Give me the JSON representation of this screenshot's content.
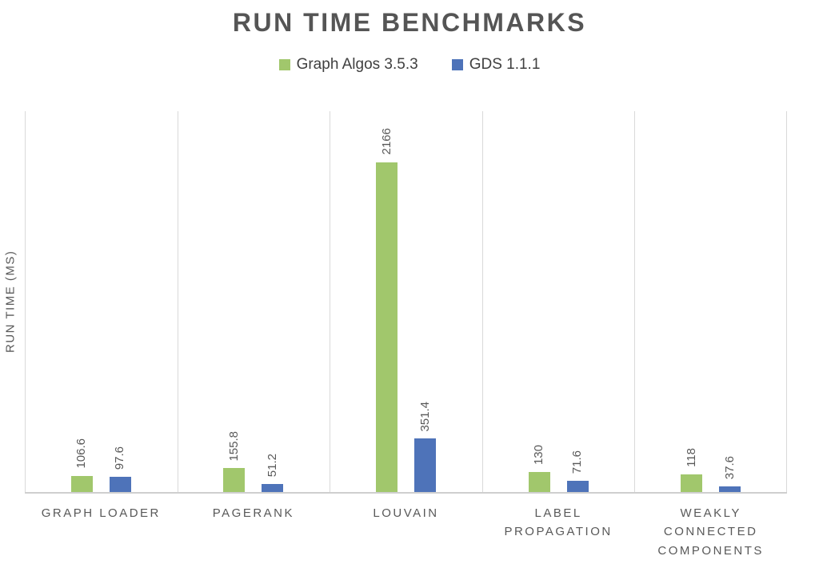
{
  "chart_data": {
    "type": "bar",
    "title": "RUN TIME BENCHMARKS",
    "categories": [
      "GRAPH LOADER",
      "PAGERANK",
      "LOUVAIN",
      "LABEL PROPAGATION",
      "WEAKLY CONNECTED COMPONENTS"
    ],
    "series": [
      {
        "name": "Graph Algos 3.5.3",
        "color": "#A1C76C",
        "values": [
          106.6,
          155.8,
          2166,
          130,
          118
        ]
      },
      {
        "name": "GDS 1.1.1",
        "color": "#4E73B9",
        "values": [
          97.6,
          51.2,
          351.4,
          71.6,
          37.6
        ]
      }
    ],
    "xlabel": "",
    "ylabel": "RUN TIME (MS)",
    "ylim": [
      0,
      2500
    ],
    "grid": "vertical category separators only, no y-axis tick labels",
    "legend_position": "top",
    "data_labels": "values printed above each bar, rotated 90 degrees counter-clockwise"
  },
  "colors": {
    "title_text": "#555555",
    "legend_text": "#404040",
    "axis_text": "#595959",
    "gridline": "#D9D9D9",
    "axis_line": "#CFCFCF",
    "bar_green": "#A1C76C",
    "bar_blue": "#4E73B9",
    "background": "#FFFFFF"
  }
}
